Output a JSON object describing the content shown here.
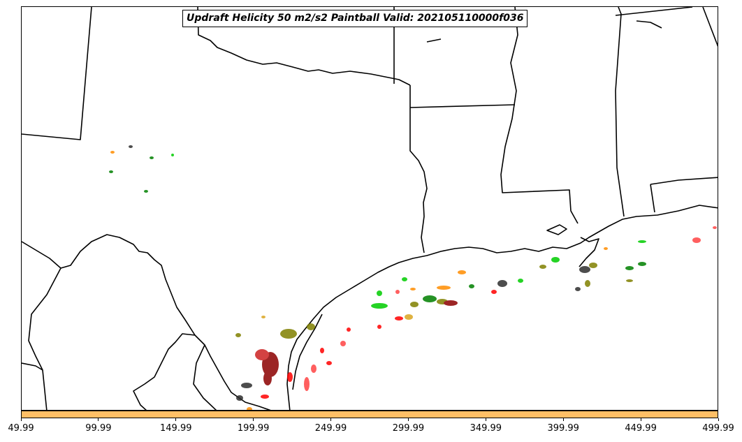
{
  "title": "Updraft Helicity 50 m2/s2 Paintball Valid: 202105110000f036",
  "colorbar": {
    "fill_color": "#ffbf66",
    "tick_labels": [
      "49.99",
      "99.99",
      "149.99",
      "199.99",
      "249.99",
      "299.99",
      "349.99",
      "399.99",
      "449.99",
      "499.99"
    ]
  },
  "map": {
    "boundary_color": "#000000",
    "features": [
      "state-boundaries",
      "coastline",
      "mexico-border"
    ]
  },
  "member_colors": [
    "#ff0000",
    "#008000",
    "#ff8c00",
    "#808000",
    "#8b0000",
    "#00cc00",
    "#2f2f2f",
    "#daa520",
    "#cc2222"
  ]
}
